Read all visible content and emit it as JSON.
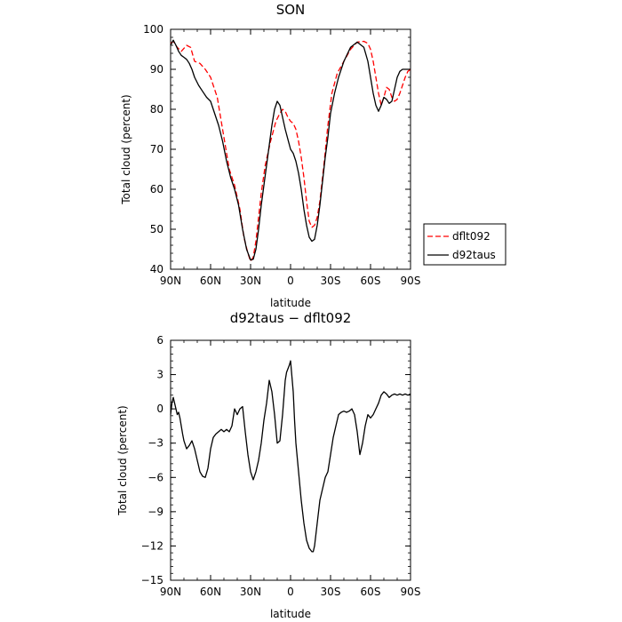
{
  "chart_data": [
    {
      "type": "line",
      "title": "SON",
      "xlabel": "latitude",
      "ylabel": "Total cloud (percent)",
      "xlim": [
        90,
        -90
      ],
      "ylim": [
        40,
        100
      ],
      "x_ticks": [
        90,
        60,
        30,
        0,
        -30,
        -60,
        -90
      ],
      "x_tick_labels": [
        "90N",
        "60N",
        "30N",
        "0",
        "30S",
        "60S",
        "90S"
      ],
      "y_ticks": [
        40,
        50,
        60,
        70,
        80,
        90,
        100
      ],
      "y_tick_labels": [
        "40",
        "50",
        "60",
        "70",
        "80",
        "90",
        "100"
      ],
      "legend_position": "right",
      "series": [
        {
          "name": "dflt092",
          "color": "#ff0000",
          "dash": "dashed",
          "x": [
            90,
            88,
            85,
            82,
            78,
            75,
            72,
            68,
            64,
            60,
            55,
            50,
            46,
            42,
            38,
            35,
            32,
            30,
            28,
            26,
            24,
            22,
            19,
            15,
            11,
            8,
            6,
            4,
            2,
            0,
            -2,
            -4,
            -6,
            -8,
            -10,
            -12,
            -14,
            -16,
            -18,
            -20,
            -22,
            -25,
            -28,
            -31,
            -35,
            -40,
            -45,
            -50,
            -55,
            -58,
            -60,
            -62,
            -64,
            -66,
            -68,
            -70,
            -72,
            -74,
            -76,
            -78,
            -80,
            -82,
            -84,
            -86,
            -88,
            -90
          ],
          "y": [
            96.5,
            97,
            95.5,
            94.5,
            96,
            95.5,
            92,
            91.5,
            90,
            88,
            83,
            73,
            65,
            61,
            55,
            48,
            44,
            42,
            43,
            47,
            53,
            59,
            66,
            72,
            77,
            79,
            80,
            79.5,
            78,
            77,
            76.5,
            75,
            72,
            68,
            63,
            57,
            52,
            50.5,
            51,
            53,
            57,
            66,
            76,
            84,
            89,
            92,
            95,
            96.8,
            97,
            96.5,
            95,
            92,
            88,
            84,
            81,
            83,
            85.5,
            85,
            83,
            82,
            82.5,
            84,
            86,
            88,
            89.5,
            90
          ]
        },
        {
          "name": "d92taus",
          "color": "#000000",
          "dash": "solid",
          "x": [
            90,
            88,
            86,
            84,
            82,
            80,
            78,
            76,
            74,
            72,
            69,
            66,
            63,
            60,
            57,
            54,
            51,
            48,
            45,
            42,
            39,
            36,
            33,
            30,
            28,
            26,
            24,
            22,
            20,
            18,
            16,
            14,
            12,
            10,
            8,
            6,
            4,
            2,
            0,
            -2,
            -4,
            -6,
            -8,
            -10,
            -12,
            -14,
            -16,
            -18,
            -20,
            -22,
            -24,
            -26,
            -28,
            -30,
            -33,
            -36,
            -40,
            -45,
            -50,
            -55,
            -58,
            -60,
            -62,
            -64,
            -66,
            -68,
            -70,
            -72,
            -74,
            -76,
            -78,
            -80,
            -82,
            -84,
            -86,
            -88,
            -90
          ],
          "y": [
            96,
            97.3,
            96,
            94.5,
            93.5,
            93,
            92.5,
            91.5,
            90,
            88,
            86,
            84.5,
            83,
            82,
            79,
            76,
            72,
            67,
            63,
            60,
            56,
            50,
            45,
            42.3,
            42.5,
            45,
            50,
            56,
            61,
            66,
            71,
            76,
            80,
            82,
            81,
            78,
            75,
            72.5,
            70,
            69,
            67,
            64,
            60,
            55,
            51,
            48,
            47,
            47.5,
            51,
            56,
            62,
            68,
            73,
            79,
            84,
            88,
            92,
            95.5,
            96.8,
            95.5,
            92,
            88,
            84,
            81,
            79.5,
            81,
            83,
            82.5,
            81.5,
            82,
            85,
            88,
            89.5,
            90,
            90,
            90,
            90
          ]
        }
      ]
    },
    {
      "type": "line",
      "title": "d92taus − dflt092",
      "xlabel": "latitude",
      "ylabel": "Total cloud (percent)",
      "xlim": [
        90,
        -90
      ],
      "ylim": [
        -15,
        6
      ],
      "x_ticks": [
        90,
        60,
        30,
        0,
        -30,
        -60,
        -90
      ],
      "x_tick_labels": [
        "90N",
        "60N",
        "30N",
        "0",
        "30S",
        "60S",
        "90S"
      ],
      "y_ticks": [
        -15,
        -12,
        -9,
        -6,
        -3,
        0,
        3,
        6
      ],
      "y_tick_labels": [
        "−15",
        "−12",
        "−9",
        "−6",
        "−3",
        "0",
        "3",
        "6"
      ],
      "series": [
        {
          "name": "",
          "color": "#000000",
          "dash": "solid",
          "x": [
            90,
            89,
            88,
            87,
            86,
            85,
            84,
            83,
            82,
            81,
            80,
            78,
            76,
            74,
            72,
            70,
            68,
            66,
            64,
            62,
            60,
            58,
            56,
            54,
            52,
            50,
            48,
            46,
            44,
            42,
            40,
            38,
            36,
            34,
            32,
            30,
            28,
            26,
            24,
            22,
            20,
            18,
            16,
            14,
            12,
            10,
            8,
            6,
            5,
            4,
            3,
            2,
            1,
            0,
            -2,
            -3,
            -4,
            -6,
            -8,
            -10,
            -12,
            -14,
            -16,
            -17,
            -18,
            -20,
            -22,
            -24,
            -26,
            -28,
            -30,
            -32,
            -34,
            -36,
            -38,
            -40,
            -42,
            -44,
            -46,
            -48,
            -50,
            -52,
            -54,
            -56,
            -58,
            -60,
            -62,
            -64,
            -66,
            -68,
            -70,
            -72,
            -74,
            -76,
            -78,
            -80,
            -82,
            -84,
            -86,
            -88,
            -90
          ],
          "y": [
            -0.5,
            0.5,
            1,
            0.5,
            0,
            -0.5,
            -0.3,
            -0.8,
            -1.5,
            -2.2,
            -2.8,
            -3.5,
            -3.2,
            -2.8,
            -3.5,
            -4.5,
            -5.5,
            -5.9,
            -6,
            -5.2,
            -3.5,
            -2.5,
            -2.2,
            -2,
            -1.8,
            -2,
            -1.8,
            -2,
            -1.5,
            0,
            -0.5,
            0,
            0.2,
            -2,
            -4,
            -5.5,
            -6.2,
            -5.5,
            -4.5,
            -3,
            -1,
            0.5,
            2.5,
            1.5,
            -0.5,
            -3,
            -2.8,
            -0.5,
            1,
            2.5,
            3.2,
            3.5,
            3.8,
            4.2,
            1.5,
            -1,
            -3,
            -5.5,
            -8,
            -10,
            -11.5,
            -12.2,
            -12.5,
            -12.5,
            -12,
            -10,
            -8,
            -7,
            -6,
            -5.5,
            -4,
            -2.5,
            -1.5,
            -0.5,
            -0.3,
            -0.2,
            -0.3,
            -0.2,
            0,
            -0.5,
            -2,
            -4,
            -3,
            -1.5,
            -0.5,
            -0.8,
            -0.5,
            0,
            0.5,
            1.2,
            1.5,
            1.3,
            1,
            1.2,
            1.3,
            1.2,
            1.3,
            1.2,
            1.3,
            1.2,
            1.3
          ]
        }
      ]
    }
  ]
}
